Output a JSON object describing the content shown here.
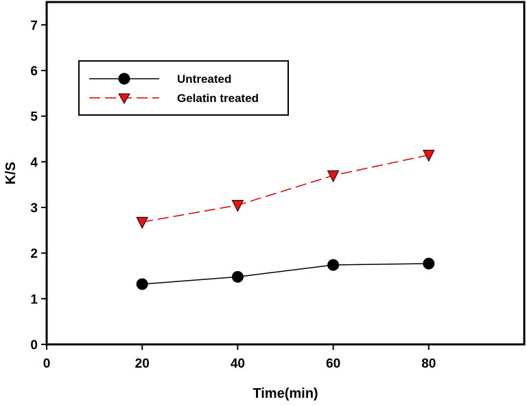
{
  "chart_data": {
    "type": "line",
    "title": "",
    "xlabel": "Time(min)",
    "ylabel": "K/S",
    "xlim": [
      0,
      100
    ],
    "ylim": [
      0,
      7.5
    ],
    "xticks": [
      0,
      20,
      40,
      60,
      80
    ],
    "yticks": [
      0,
      1,
      2,
      3,
      4,
      5,
      6,
      7
    ],
    "grid": false,
    "legend_position": "top-left",
    "x": [
      20,
      40,
      60,
      80
    ],
    "series": [
      {
        "name": "Untreated",
        "values": [
          1.32,
          1.48,
          1.74,
          1.77
        ],
        "marker": "circle",
        "line_style": "solid",
        "line_color": "#000000",
        "marker_color": "#000000"
      },
      {
        "name": "Gelatin treated",
        "values": [
          2.68,
          3.05,
          3.7,
          4.15
        ],
        "marker": "triangle-down",
        "line_style": "dashed",
        "line_color": "#cc0000",
        "marker_color": "#ee1111"
      }
    ]
  }
}
